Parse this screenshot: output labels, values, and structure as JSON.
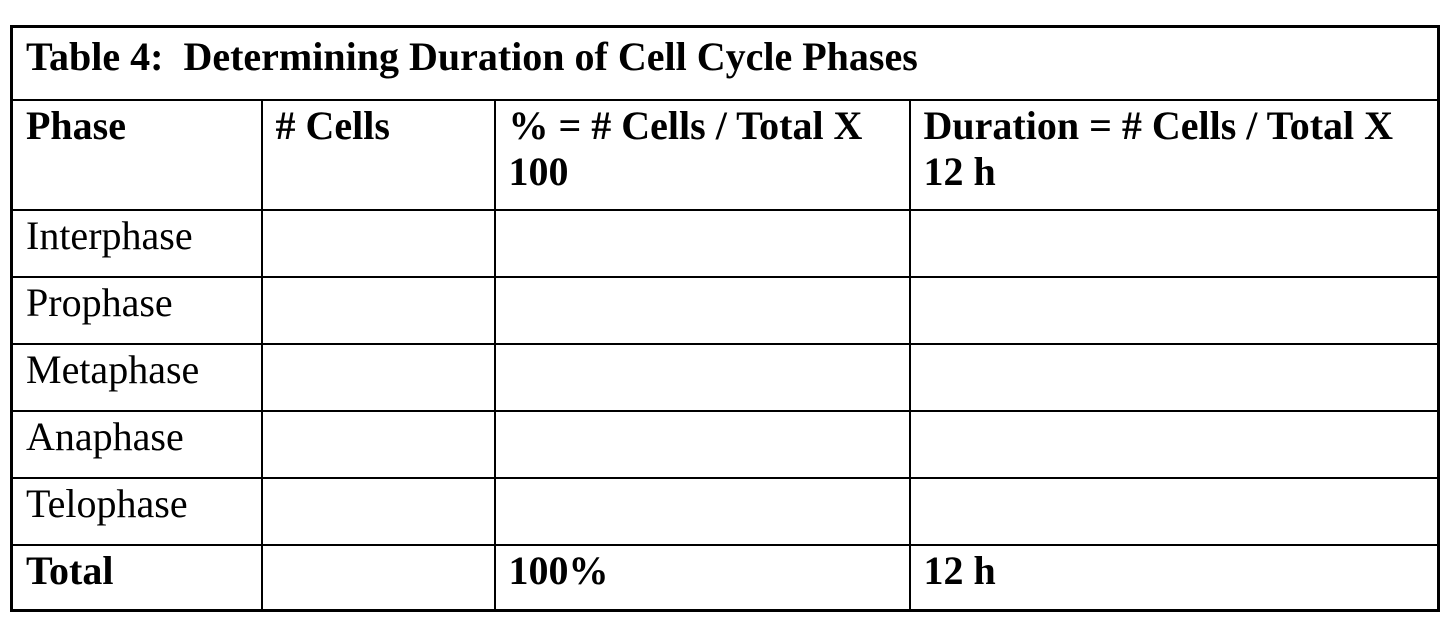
{
  "page": {
    "background_color": "#ffffff",
    "text_color": "#000000",
    "border_color": "#000000"
  },
  "table": {
    "title": "Table 4:  Determining Duration of Cell Cycle Phases",
    "headers": {
      "phase": "Phase",
      "cells": "# Cells",
      "percent": "% = # Cells / Total X 100",
      "duration": "Duration = # Cells / Total X 12 h"
    },
    "rows": [
      {
        "phase": "Interphase",
        "cells": "",
        "percent": "",
        "duration": ""
      },
      {
        "phase": "Prophase",
        "cells": "",
        "percent": "",
        "duration": ""
      },
      {
        "phase": "Metaphase",
        "cells": "",
        "percent": "",
        "duration": ""
      },
      {
        "phase": "Anaphase",
        "cells": "",
        "percent": "",
        "duration": ""
      },
      {
        "phase": "Telophase",
        "cells": "",
        "percent": "",
        "duration": ""
      }
    ],
    "total": {
      "phase": "Total",
      "cells": "",
      "percent": "100%",
      "duration": "12 h"
    }
  }
}
